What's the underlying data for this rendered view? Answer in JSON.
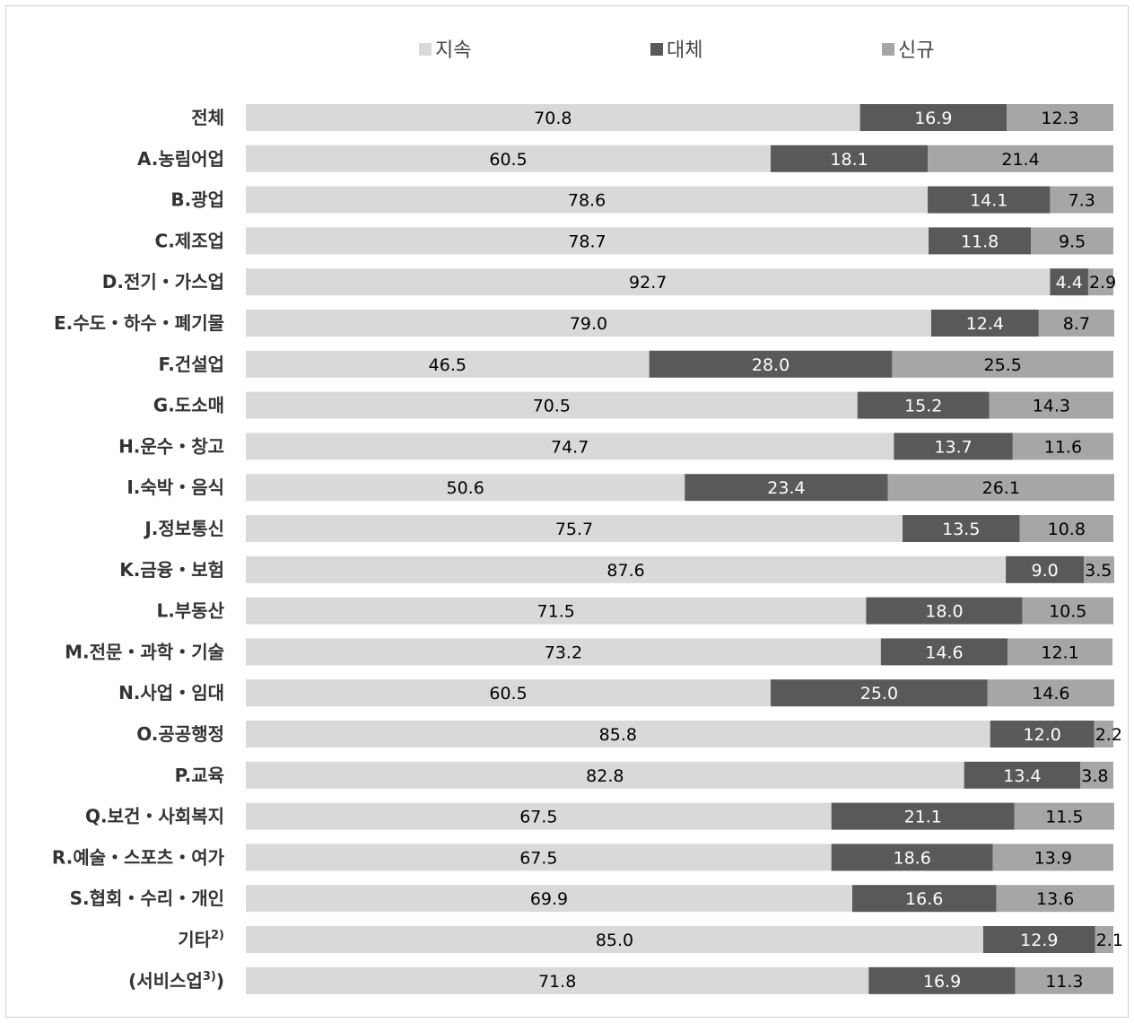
{
  "chart_data": {
    "type": "bar",
    "orientation": "horizontal",
    "stacked": true,
    "legend_position": "top",
    "grid": false,
    "xlim": [
      0,
      100
    ],
    "colors": {
      "지속": "#d9d9d9",
      "대체": "#595959",
      "신규": "#a6a6a6"
    },
    "label_colors": {
      "지속": "#000000",
      "대체": "#ffffff",
      "신규": "#000000"
    },
    "categories": [
      {
        "text": "전체",
        "sup": ""
      },
      {
        "text": "A.농림어업",
        "sup": ""
      },
      {
        "text": "B.광업",
        "sup": ""
      },
      {
        "text": "C.제조업",
        "sup": ""
      },
      {
        "text": "D.전기・가스업",
        "sup": ""
      },
      {
        "text": "E.수도・하수・폐기물",
        "sup": ""
      },
      {
        "text": "F.건설업",
        "sup": ""
      },
      {
        "text": "G.도소매",
        "sup": ""
      },
      {
        "text": "H.운수・창고",
        "sup": ""
      },
      {
        "text": "I.숙박・음식",
        "sup": ""
      },
      {
        "text": "J.정보통신",
        "sup": ""
      },
      {
        "text": "K.금융・보험",
        "sup": ""
      },
      {
        "text": "L.부동산",
        "sup": ""
      },
      {
        "text": "M.전문・과학・기술",
        "sup": ""
      },
      {
        "text": "N.사업・임대",
        "sup": ""
      },
      {
        "text": "O.공공행정",
        "sup": ""
      },
      {
        "text": "P.교육",
        "sup": ""
      },
      {
        "text": "Q.보건・사회복지",
        "sup": ""
      },
      {
        "text": "R.예술・스포츠・여가",
        "sup": ""
      },
      {
        "text": "S.협회・수리・개인",
        "sup": ""
      },
      {
        "text": "기타",
        "sup": "2)"
      },
      {
        "text": "(서비스업",
        "sup": "3)",
        "suffix": ")"
      }
    ],
    "series": [
      {
        "name": "지속",
        "values": [
          70.8,
          60.5,
          78.6,
          78.7,
          92.7,
          79.0,
          46.5,
          70.5,
          74.7,
          50.6,
          75.7,
          87.6,
          71.5,
          73.2,
          60.5,
          85.8,
          82.8,
          67.5,
          67.5,
          69.9,
          85.0,
          71.8
        ]
      },
      {
        "name": "대체",
        "values": [
          16.9,
          18.1,
          14.1,
          11.8,
          4.4,
          12.4,
          28.0,
          15.2,
          13.7,
          23.4,
          13.5,
          9.0,
          18.0,
          14.6,
          25.0,
          12.0,
          13.4,
          21.1,
          18.6,
          16.6,
          12.9,
          16.9
        ]
      },
      {
        "name": "신규",
        "values": [
          12.3,
          21.4,
          7.3,
          9.5,
          2.9,
          8.7,
          25.5,
          14.3,
          11.6,
          26.1,
          10.8,
          3.5,
          10.5,
          12.1,
          14.6,
          2.2,
          3.8,
          11.5,
          13.9,
          13.6,
          2.1,
          11.3
        ]
      }
    ]
  }
}
